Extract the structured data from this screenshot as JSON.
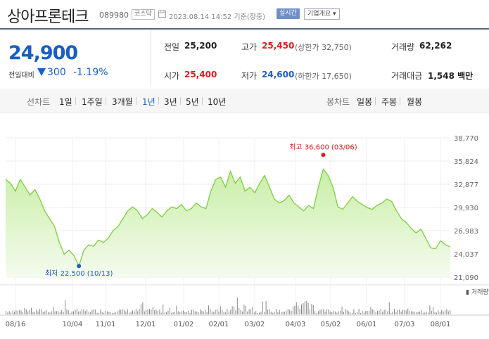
{
  "header": {
    "title": "상아프론테크",
    "code": "089980",
    "market": "코스닥",
    "timestamp": "2023.08.14 14:52 기준(장중)",
    "realtime_label": "실시간",
    "company_label": "기업개요 ▾"
  },
  "summary": {
    "price": "24,900",
    "change_label": "전일대비",
    "change_value": "300",
    "change_pct": "-1.19%",
    "prev_close_label": "전일",
    "prev_close": "25,200",
    "high_label": "고가",
    "high": "25,450",
    "upper_limit": "(상한가 32,750)",
    "volume_label": "거래량",
    "volume": "62,262",
    "open_label": "시가",
    "open": "25,400",
    "low_label": "저가",
    "low": "24,600",
    "lower_limit": "(하한가 17,650)",
    "amount_label": "거래대금",
    "amount": "1,548 백만"
  },
  "periods": {
    "line_label": "선차트",
    "line_items": [
      "1일",
      "1주일",
      "3개월",
      "1년",
      "3년",
      "5년",
      "10년"
    ],
    "active": "1년",
    "candle_label": "봉차트",
    "candle_items": [
      "일봉",
      "주봉",
      "월봉"
    ]
  },
  "colors": {
    "up": "#e01c1c",
    "down": "#1a5ec4",
    "line": "#7ccf3d",
    "fill": "#dff5c9"
  },
  "chart_data": {
    "type": "area",
    "ylim": [
      21090,
      38770
    ],
    "y_ticks": [
      "38,770",
      "35,824",
      "32,877",
      "29,930",
      "26,983",
      "24,037",
      "21,090"
    ],
    "x_ticks": [
      "08/16",
      "10/04",
      "11/01",
      "12/01",
      "01/02",
      "02/01",
      "03/02",
      "04/03",
      "05/02",
      "06/01",
      "07/03",
      "08/01"
    ],
    "high_label": "최고 36,600 (03/06)",
    "low_label": "최저 22,500 (10/13)",
    "volume_label": "거래량",
    "price_series": [
      33500,
      33000,
      32000,
      33500,
      32500,
      31500,
      32200,
      31000,
      29500,
      28500,
      27500,
      25500,
      24000,
      24500,
      23800,
      22500,
      24500,
      25200,
      25000,
      25800,
      25500,
      26000,
      27000,
      27500,
      28500,
      29500,
      30000,
      29500,
      28500,
      29000,
      29800,
      29300,
      28700,
      29500,
      30000,
      29800,
      30300,
      29500,
      29800,
      30500,
      30000,
      29800,
      32000,
      33500,
      33800,
      32500,
      34500,
      33000,
      33800,
      32000,
      32500,
      31800,
      33000,
      34000,
      32500,
      31000,
      30500,
      30800,
      31500,
      30500,
      30000,
      29500,
      30200,
      29800,
      32500,
      34800,
      34000,
      32500,
      30000,
      29700,
      30500,
      31300,
      30700,
      30300,
      29900,
      29700,
      30200,
      30500,
      31000,
      30700,
      29500,
      28500,
      28000,
      27300,
      26700,
      27200,
      26000,
      24800,
      24700,
      25700,
      25200,
      24900
    ]
  }
}
